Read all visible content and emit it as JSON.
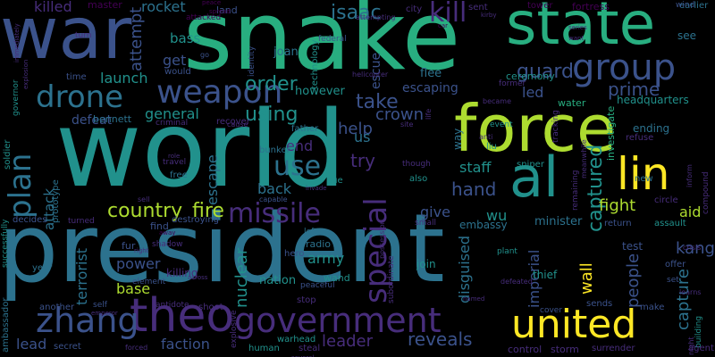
{
  "palette": {
    "background": "#000000",
    "dark_purple": "#440154",
    "purple": "#472d7b",
    "indigo": "#3b528b",
    "blue": "#2c728e",
    "teal": "#21918c",
    "green": "#28ae80",
    "lime": "#5ec962",
    "yellow_green": "#addc30",
    "yellow": "#fde725"
  },
  "words": [
    {
      "text": "world",
      "color": "#21918c"
    },
    {
      "text": "president",
      "color": "#2c728e"
    },
    {
      "text": "snake",
      "color": "#28ae80"
    },
    {
      "text": "war",
      "color": "#3b528b"
    },
    {
      "text": "force",
      "color": "#addc30"
    },
    {
      "text": "state",
      "color": "#28ae80"
    },
    {
      "text": "theo",
      "color": "#472d7b"
    },
    {
      "text": "government",
      "color": "#472d7b"
    },
    {
      "text": "united",
      "color": "#fde725"
    },
    {
      "text": "zhang",
      "color": "#3b528b"
    },
    {
      "text": "lin",
      "color": "#fde725"
    },
    {
      "text": "al",
      "color": "#21918c"
    },
    {
      "text": "group",
      "color": "#3b528b"
    },
    {
      "text": "drone",
      "color": "#2c728e"
    },
    {
      "text": "weapon",
      "color": "#3b528b"
    },
    {
      "text": "missile",
      "color": "#472d7b"
    },
    {
      "text": "plan",
      "color": "#2c728e"
    },
    {
      "text": "special",
      "color": "#472d7b"
    },
    {
      "text": "country",
      "color": "#addc30"
    },
    {
      "text": "fire",
      "color": "#addc30"
    },
    {
      "text": "use",
      "color": "#2c728e"
    },
    {
      "text": "captured",
      "color": "#21918c"
    },
    {
      "text": "guard",
      "color": "#3b528b"
    },
    {
      "text": "prime",
      "color": "#3b528b"
    },
    {
      "text": "order",
      "color": "#21918c"
    },
    {
      "text": "isaac",
      "color": "#2c728e"
    },
    {
      "text": "kill",
      "color": "#472d7b"
    },
    {
      "text": "killed",
      "color": "#472d7b"
    },
    {
      "text": "master",
      "color": "#440154"
    },
    {
      "text": "rocket",
      "color": "#2c728e"
    },
    {
      "text": "attempt",
      "color": "#3b528b"
    },
    {
      "text": "bass",
      "color": "#21918c"
    },
    {
      "text": "get",
      "color": "#3b528b"
    },
    {
      "text": "launch",
      "color": "#21918c"
    },
    {
      "text": "general",
      "color": "#21918c"
    },
    {
      "text": "using",
      "color": "#21918c"
    },
    {
      "text": "take",
      "color": "#3b528b"
    },
    {
      "text": "help",
      "color": "#3b528b"
    },
    {
      "text": "crown",
      "color": "#3b528b"
    },
    {
      "text": "try",
      "color": "#472d7b"
    },
    {
      "text": "escape",
      "color": "#2c728e"
    },
    {
      "text": "back",
      "color": "#2c728e"
    },
    {
      "text": "hand",
      "color": "#3b528b"
    },
    {
      "text": "staff",
      "color": "#21918c"
    },
    {
      "text": "wu",
      "color": "#21918c"
    },
    {
      "text": "give",
      "color": "#3b528b"
    },
    {
      "text": "army",
      "color": "#21918c"
    },
    {
      "text": "power",
      "color": "#3b528b"
    },
    {
      "text": "base",
      "color": "#addc30"
    },
    {
      "text": "nuclear",
      "color": "#21918c"
    },
    {
      "text": "wall",
      "color": "#fde725"
    },
    {
      "text": "leader",
      "color": "#472d7b"
    },
    {
      "text": "reveals",
      "color": "#3b528b"
    },
    {
      "text": "faction",
      "color": "#3b528b"
    },
    {
      "text": "lead",
      "color": "#3b528b"
    },
    {
      "text": "kang",
      "color": "#3b528b"
    },
    {
      "text": "fight",
      "color": "#addc30"
    },
    {
      "text": "aid",
      "color": "#addc30"
    },
    {
      "text": "people",
      "color": "#3b528b"
    },
    {
      "text": "capture",
      "color": "#2c728e"
    },
    {
      "text": "imperial",
      "color": "#3b528b"
    },
    {
      "text": "disguised",
      "color": "#2c728e"
    },
    {
      "text": "terrorist",
      "color": "#2c728e"
    },
    {
      "text": "attack",
      "color": "#2c728e"
    },
    {
      "text": "end",
      "color": "#472d7b"
    },
    {
      "text": "us",
      "color": "#2c728e"
    },
    {
      "text": "led",
      "color": "#3b528b"
    },
    {
      "text": "escaping",
      "color": "#3b528b"
    },
    {
      "text": "escue",
      "color": "#3b528b"
    },
    {
      "text": "however",
      "color": "#21918c"
    },
    {
      "text": "joan",
      "color": "#2c728e"
    },
    {
      "text": "flee",
      "color": "#2c728e"
    },
    {
      "text": "minister",
      "color": "#2c728e"
    },
    {
      "text": "embassy",
      "color": "#2c728e"
    },
    {
      "text": "headquarters",
      "color": "#21918c"
    },
    {
      "text": "see",
      "color": "#2c728e"
    },
    {
      "text": "fortress",
      "color": "#440154"
    },
    {
      "text": "ceremony",
      "color": "#21918c"
    },
    {
      "text": "tower",
      "color": "#440154"
    },
    {
      "text": "earlier",
      "color": "#2c728e"
    },
    {
      "text": "refuse",
      "color": "#472d7b"
    },
    {
      "text": "ending",
      "color": "#2c728e"
    },
    {
      "text": "water",
      "color": "#28ae80"
    },
    {
      "text": "investigate",
      "color": "#28ae80"
    },
    {
      "text": "nation",
      "color": "#21918c"
    },
    {
      "text": "radio",
      "color": "#2c728e"
    },
    {
      "text": "wand",
      "color": "#21918c"
    },
    {
      "text": "join",
      "color": "#21918c"
    },
    {
      "text": "thief",
      "color": "#21918c"
    },
    {
      "text": "test",
      "color": "#3b528b"
    },
    {
      "text": "offer",
      "color": "#3b528b"
    },
    {
      "text": "assault",
      "color": "#21918c"
    },
    {
      "text": "make",
      "color": "#3b528b"
    },
    {
      "text": "sends",
      "color": "#3b528b"
    },
    {
      "text": "surrender",
      "color": "#472d7b"
    },
    {
      "text": "warhead",
      "color": "#21918c"
    },
    {
      "text": "control",
      "color": "#472d7b"
    },
    {
      "text": "storm",
      "color": "#472d7b"
    },
    {
      "text": "steal",
      "color": "#472d7b"
    },
    {
      "text": "human",
      "color": "#21918c"
    },
    {
      "text": "secret",
      "color": "#3b528b"
    },
    {
      "text": "another",
      "color": "#3b528b"
    },
    {
      "text": "year",
      "color": "#2c728e"
    },
    {
      "text": "ambassador",
      "color": "#2c728e"
    },
    {
      "text": "successfully",
      "color": "#21918c"
    },
    {
      "text": "soldier",
      "color": "#21918c"
    },
    {
      "text": "defeat",
      "color": "#3b528b"
    },
    {
      "text": "bennett",
      "color": "#2c728e"
    },
    {
      "text": "prototype",
      "color": "#2c728e"
    },
    {
      "text": "decides",
      "color": "#3b528b"
    },
    {
      "text": "find",
      "color": "#3b528b"
    },
    {
      "text": "fur",
      "color": "#3b528b"
    },
    {
      "text": "killing",
      "color": "#472d7b"
    },
    {
      "text": "element",
      "color": "#3b528b"
    },
    {
      "text": "shoot",
      "color": "#472d7b"
    },
    {
      "text": "self",
      "color": "#3b528b"
    },
    {
      "text": "antidote",
      "color": "#472d7b"
    },
    {
      "text": "stop",
      "color": "#472d7b"
    },
    {
      "text": "explosive",
      "color": "#472d7b"
    },
    {
      "text": "peaceful",
      "color": "#3b528b"
    },
    {
      "text": "hero",
      "color": "#3b528b"
    },
    {
      "text": "left",
      "color": "#2c728e"
    },
    {
      "text": "sue",
      "color": "#21918c"
    },
    {
      "text": "also",
      "color": "#21918c"
    },
    {
      "text": "sniper",
      "color": "#21918c"
    },
    {
      "text": "new",
      "color": "#2c728e"
    },
    {
      "text": "circle",
      "color": "#472d7b"
    },
    {
      "text": "return",
      "color": "#3b528b"
    },
    {
      "text": "crisis",
      "color": "#472d7b"
    },
    {
      "text": "building",
      "color": "#21918c"
    },
    {
      "text": "agent",
      "color": "#472d7b"
    },
    {
      "text": "cover",
      "color": "#3b528b"
    },
    {
      "text": "plant",
      "color": "#21918c"
    },
    {
      "text": "defeated",
      "color": "#472d7b"
    },
    {
      "text": "remaining",
      "color": "#472d7b"
    },
    {
      "text": "tracking",
      "color": "#472d7b"
    },
    {
      "text": "way",
      "color": "#2c728e"
    },
    {
      "text": "liu",
      "color": "#21918c"
    },
    {
      "text": "anti",
      "color": "#472d7b"
    },
    {
      "text": "event",
      "color": "#21918c"
    },
    {
      "text": "became",
      "color": "#472d7b"
    },
    {
      "text": "former",
      "color": "#472d7b"
    },
    {
      "text": "life",
      "color": "#472d7b"
    },
    {
      "text": "site",
      "color": "#472d7b"
    },
    {
      "text": "travel",
      "color": "#472d7b"
    },
    {
      "text": "free",
      "color": "#2c728e"
    },
    {
      "text": "bunker",
      "color": "#2c728e"
    },
    {
      "text": "father",
      "color": "#2c728e"
    },
    {
      "text": "criminal",
      "color": "#472d7b"
    },
    {
      "text": "recover",
      "color": "#472d7b"
    },
    {
      "text": "cause",
      "color": "#472d7b"
    },
    {
      "text": "identity",
      "color": "#3b528b"
    },
    {
      "text": "technology",
      "color": "#21918c"
    },
    {
      "text": "federal",
      "color": "#3b528b"
    },
    {
      "text": "helicopter",
      "color": "#472d7b"
    },
    {
      "text": "turn",
      "color": "#472d7b"
    },
    {
      "text": "time",
      "color": "#3b528b"
    },
    {
      "text": "would",
      "color": "#3b528b"
    },
    {
      "text": "shadow",
      "color": "#472d7b"
    },
    {
      "text": "destroying",
      "color": "#3b528b"
    },
    {
      "text": "turned",
      "color": "#472d7b"
    },
    {
      "text": "capable",
      "color": "#3b528b"
    },
    {
      "text": "invade",
      "color": "#472d7b"
    },
    {
      "text": "small",
      "color": "#472d7b"
    },
    {
      "text": "though",
      "color": "#472d7b"
    },
    {
      "text": "subordinate",
      "color": "#472d7b"
    },
    {
      "text": "possession",
      "color": "#472d7b"
    },
    {
      "text": "inform",
      "color": "#472d7b"
    },
    {
      "text": "learns",
      "color": "#472d7b"
    },
    {
      "text": "meanwhile",
      "color": "#472d7b"
    },
    {
      "text": "compound",
      "color": "#472d7b"
    },
    {
      "text": "sell",
      "color": "#472d7b"
    },
    {
      "text": "governor",
      "color": "#21918c"
    },
    {
      "text": "explosion",
      "color": "#472d7b"
    },
    {
      "text": "peace",
      "color": "#440154"
    },
    {
      "text": "attacked",
      "color": "#440154"
    },
    {
      "text": "land",
      "color": "#3b528b"
    },
    {
      "text": "sent",
      "color": "#472d7b"
    },
    {
      "text": "city",
      "color": "#472d7b"
    },
    {
      "text": "kirby",
      "color": "#472d7b"
    },
    {
      "text": "attempting",
      "color": "#472d7b"
    },
    {
      "text": "car",
      "color": "#440154"
    },
    {
      "text": "series",
      "color": "#472d7b"
    },
    {
      "text": "want",
      "color": "#472d7b"
    },
    {
      "text": "set",
      "color": "#3b528b"
    },
    {
      "text": "right",
      "color": "#472d7b"
    },
    {
      "text": "named",
      "color": "#472d7b"
    },
    {
      "text": "forced",
      "color": "#472d7b"
    },
    {
      "text": "emperor",
      "color": "#472d7b"
    },
    {
      "text": "several",
      "color": "#472d7b"
    },
    {
      "text": "across",
      "color": "#472d7b"
    },
    {
      "text": "wind",
      "color": "#3b528b"
    },
    {
      "text": "go",
      "color": "#3b528b"
    },
    {
      "text": "role",
      "color": "#472d7b"
    },
    {
      "text": "immediately",
      "color": "#472d7b"
    },
    {
      "text": "night",
      "color": "#472d7b"
    },
    {
      "text": "spread",
      "color": "#440154"
    },
    {
      "text": "away",
      "color": "#440154"
    }
  ]
}
